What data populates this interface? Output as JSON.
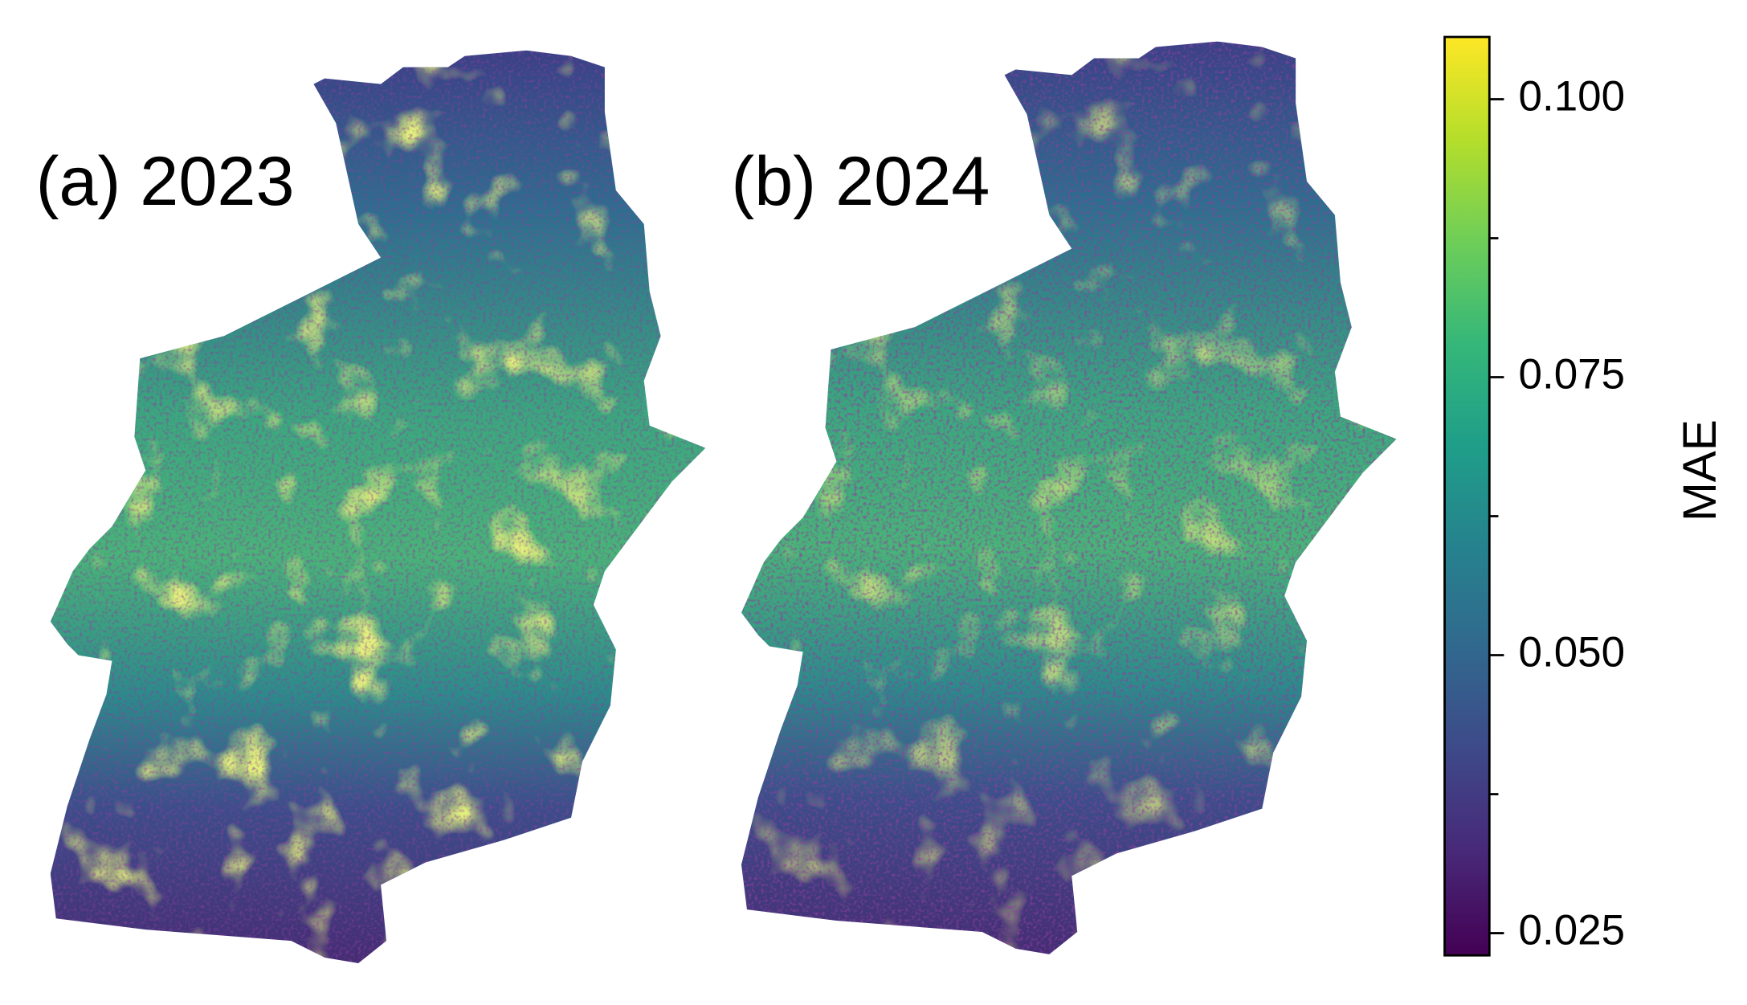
{
  "chart_data": {
    "type": "map",
    "panels": [
      {
        "label": "(a) 2023"
      },
      {
        "label": "(b) 2024"
      }
    ],
    "colorbar": {
      "label": "MAE",
      "colors": [
        "#440154",
        "#482878",
        "#3e4989",
        "#31688e",
        "#26828e",
        "#1f9e89",
        "#35b779",
        "#6ece58",
        "#b5de2b",
        "#fde725"
      ],
      "ylim": [
        0.023,
        0.1056
      ],
      "yticks": [
        {
          "value": 0.025,
          "label": "0.025"
        },
        {
          "value": 0.05,
          "label": "0.050"
        },
        {
          "value": 0.075,
          "label": "0.075"
        },
        {
          "value": 0.1,
          "label": "0.100"
        }
      ],
      "minor_yticks": [
        0.0375,
        0.0625,
        0.0875
      ]
    }
  }
}
